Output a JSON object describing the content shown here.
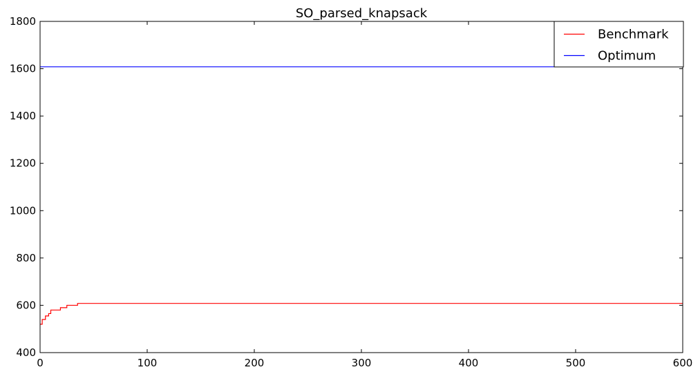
{
  "chart_data": {
    "type": "line",
    "title": "SO_parsed_knapsack",
    "xlabel": "",
    "ylabel": "",
    "xlim": [
      0,
      600
    ],
    "ylim": [
      400,
      1800
    ],
    "x_ticks": [
      0,
      100,
      200,
      300,
      400,
      500,
      600
    ],
    "y_ticks": [
      400,
      600,
      800,
      1000,
      1200,
      1400,
      1600,
      1800
    ],
    "x_tick_labels": [
      "0",
      "100",
      "200",
      "300",
      "400",
      "500",
      "600"
    ],
    "y_tick_labels": [
      "400",
      "600",
      "800",
      "1000",
      "1200",
      "1400",
      "1600",
      "1800"
    ],
    "grid": false,
    "legend_position": "top-right",
    "series": [
      {
        "name": "Benchmark",
        "color": "#ff0000",
        "points": [
          [
            0,
            520
          ],
          [
            2,
            520
          ],
          [
            2,
            540
          ],
          [
            5,
            540
          ],
          [
            5,
            555
          ],
          [
            8,
            555
          ],
          [
            8,
            565
          ],
          [
            10,
            565
          ],
          [
            10,
            580
          ],
          [
            19,
            580
          ],
          [
            19,
            590
          ],
          [
            25,
            590
          ],
          [
            25,
            600
          ],
          [
            35,
            600
          ],
          [
            35,
            608
          ],
          [
            600,
            608
          ]
        ]
      },
      {
        "name": "Optimum",
        "color": "#0000ff",
        "points": [
          [
            0,
            1608
          ],
          [
            600,
            1608
          ]
        ]
      }
    ]
  }
}
